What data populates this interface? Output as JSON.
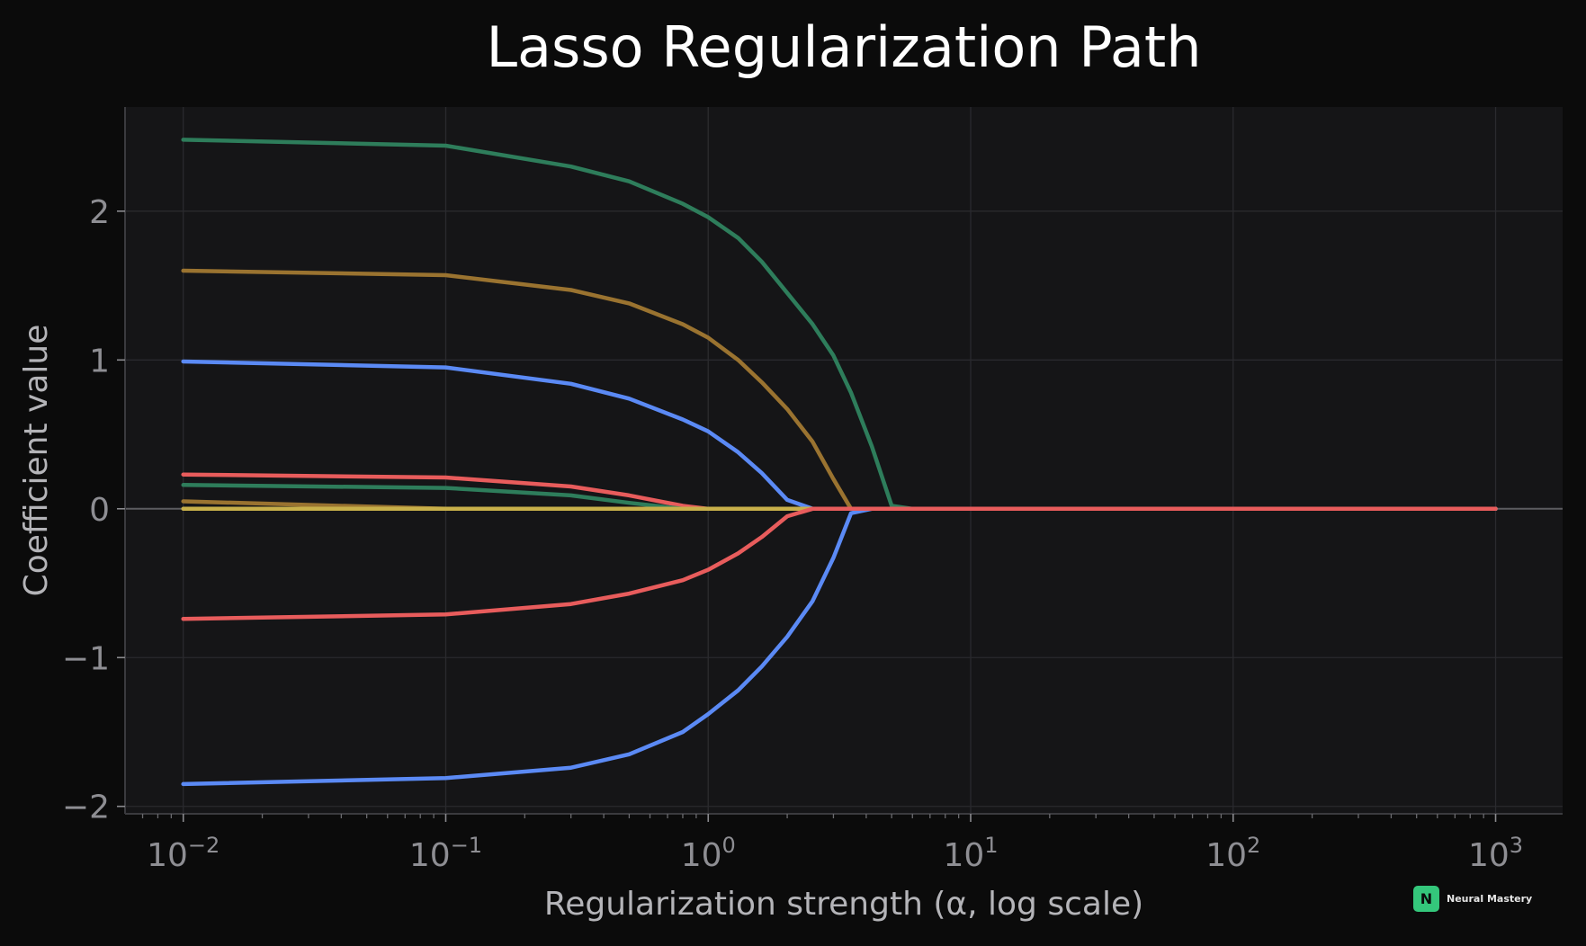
{
  "chart_data": {
    "type": "line",
    "title": "Lasso Regularization Path",
    "xlabel": "Regularization strength (α, log scale)",
    "ylabel": "Coefficient value",
    "x_scale": "log",
    "xlim": [
      0.006,
      1800
    ],
    "ylim": [
      -2.05,
      2.7
    ],
    "x_ticks": [
      {
        "value": 0.01,
        "base": "10",
        "exp": "−2"
      },
      {
        "value": 0.1,
        "base": "10",
        "exp": "−1"
      },
      {
        "value": 1,
        "base": "10",
        "exp": "0"
      },
      {
        "value": 10,
        "base": "10",
        "exp": "1"
      },
      {
        "value": 100,
        "base": "10",
        "exp": "2"
      },
      {
        "value": 1000,
        "base": "10",
        "exp": "3"
      }
    ],
    "y_ticks": [
      {
        "value": 2,
        "label": "2"
      },
      {
        "value": 1,
        "label": "1"
      },
      {
        "value": 0,
        "label": "0"
      },
      {
        "value": -1,
        "label": "−1"
      },
      {
        "value": -2,
        "label": "−2"
      }
    ],
    "grid": true,
    "x": [
      0.01,
      0.1,
      0.3,
      0.5,
      0.8,
      1.0,
      1.3,
      1.6,
      2.0,
      2.5,
      3.0,
      3.5,
      4.2,
      5.0,
      6.0,
      10,
      100,
      1000
    ],
    "series": [
      {
        "color": "#2e7d5b",
        "values": [
          2.48,
          2.44,
          2.3,
          2.2,
          2.05,
          1.96,
          1.82,
          1.66,
          1.45,
          1.24,
          1.03,
          0.78,
          0.42,
          0.02,
          0.0,
          0.0,
          0.0,
          0.0
        ]
      },
      {
        "color": "#9a7330",
        "values": [
          1.6,
          1.57,
          1.47,
          1.38,
          1.24,
          1.15,
          1.0,
          0.85,
          0.67,
          0.45,
          0.2,
          0.0,
          0.0,
          0.0,
          0.0,
          0.0,
          0.0,
          0.0
        ]
      },
      {
        "color": "#5b8af5",
        "values": [
          0.99,
          0.95,
          0.84,
          0.74,
          0.6,
          0.52,
          0.38,
          0.24,
          0.06,
          0.0,
          0.0,
          0.0,
          0.0,
          0.0,
          0.0,
          0.0,
          0.0,
          0.0
        ]
      },
      {
        "color": "#e85c5c",
        "values": [
          0.23,
          0.21,
          0.15,
          0.09,
          0.02,
          0.0,
          0.0,
          0.0,
          0.0,
          0.0,
          0.0,
          0.0,
          0.0,
          0.0,
          0.0,
          0.0,
          0.0,
          0.0
        ]
      },
      {
        "color": "#2e7d5b",
        "values": [
          0.16,
          0.14,
          0.09,
          0.04,
          0.0,
          0.0,
          0.0,
          0.0,
          0.0,
          0.0,
          0.0,
          0.0,
          0.0,
          0.0,
          0.0,
          0.0,
          0.0,
          0.0
        ]
      },
      {
        "color": "#9a7330",
        "values": [
          0.05,
          0.0,
          0.0,
          0.0,
          0.0,
          0.0,
          0.0,
          0.0,
          0.0,
          0.0,
          0.0,
          0.0,
          0.0,
          0.0,
          0.0,
          0.0,
          0.0,
          0.0
        ]
      },
      {
        "color": "#c8b04a",
        "values": [
          0.0,
          0.0,
          0.0,
          0.0,
          0.0,
          0.0,
          0.0,
          0.0,
          0.0,
          0.0,
          0.0,
          0.0,
          0.0,
          0.0,
          0.0,
          0.0,
          0.0,
          0.0
        ]
      },
      {
        "color": "#5b8af5",
        "values": [
          -1.85,
          -1.81,
          -1.74,
          -1.65,
          -1.5,
          -1.38,
          -1.22,
          -1.06,
          -0.86,
          -0.62,
          -0.33,
          -0.03,
          0.0,
          0.0,
          0.0,
          0.0,
          0.0,
          0.0
        ]
      },
      {
        "color": "#e85c5c",
        "values": [
          -0.74,
          -0.71,
          -0.64,
          -0.57,
          -0.48,
          -0.41,
          -0.3,
          -0.19,
          -0.05,
          0.0,
          0.0,
          0.0,
          0.0,
          0.0,
          0.0,
          0.0,
          0.0,
          0.0
        ]
      }
    ]
  },
  "brand": {
    "letter": "N",
    "name": "Neural Mastery",
    "color": "#34c77b"
  }
}
